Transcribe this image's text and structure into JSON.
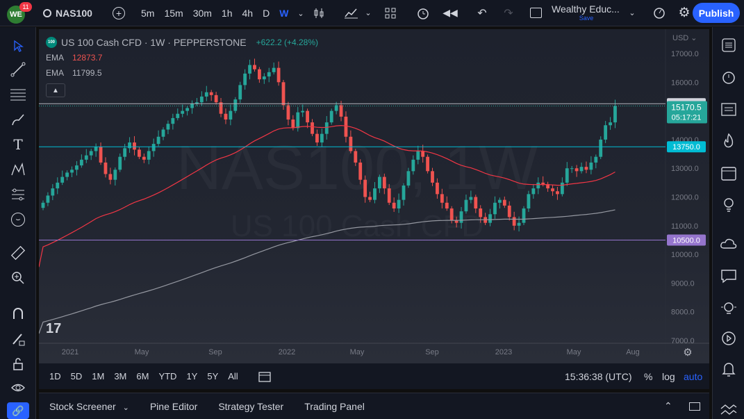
{
  "header": {
    "badge_count": "11",
    "logo_text": "WE",
    "symbol": "NAS100",
    "intervals": [
      "5m",
      "15m",
      "30m",
      "1h",
      "4h",
      "D",
      "W"
    ],
    "active_interval": "W",
    "layout_name": "Wealthy Educ...",
    "layout_status": "Save",
    "publish_label": "Publish"
  },
  "legend": {
    "symbol_badge": "100",
    "title": "US 100 Cash CFD · 1W · PEPPERSTONE",
    "change": "+622.2 (+4.28%)",
    "ema1_label": "EMA",
    "ema1_value": "12873.7",
    "ema2_label": "EMA",
    "ema2_value": "11799.5"
  },
  "watermark": {
    "symbol": "NAS100, 1W",
    "description": "US 100 Cash CFD"
  },
  "chart_data": {
    "type": "candlestick",
    "currency": "USD",
    "y_ticks": [
      7000,
      8000,
      9000,
      10000,
      11000,
      12000,
      13000,
      14000,
      16000,
      17000
    ],
    "y_tick_labels": [
      "7000.0",
      "8000.0",
      "9000.0",
      "10000.0",
      "11000.0",
      "12000.0",
      "13000.0",
      "14000.0",
      "16000.0",
      "17000.0"
    ],
    "x_labels": [
      "2021",
      "May",
      "Sep",
      "2022",
      "May",
      "Sep",
      "2023",
      "May",
      "Aug"
    ],
    "ylim": [
      7000,
      17800
    ],
    "horizontal_lines": [
      {
        "value": 15250,
        "label": "15250.0",
        "color": "#b2b5be"
      },
      {
        "value": 13750,
        "label": "13750.0",
        "color": "#00bcd4"
      },
      {
        "value": 10500,
        "label": "10500.0",
        "color": "#9575cd"
      }
    ],
    "last_price": {
      "value": 15170.5,
      "label": "15170.5",
      "countdown": "05:17:21",
      "color": "#26a69a"
    },
    "closes": [
      11800,
      12050,
      12300,
      12500,
      12700,
      12850,
      12950,
      13100,
      13300,
      13450,
      13600,
      13750,
      13200,
      12800,
      12600,
      12950,
      13400,
      13700,
      13900,
      13650,
      13400,
      13300,
      13600,
      13850,
      14100,
      14350,
      14550,
      14750,
      14900,
      15000,
      15100,
      15250,
      15300,
      15500,
      15650,
      15550,
      15300,
      14900,
      14700,
      15000,
      15400,
      15900,
      16300,
      16600,
      16450,
      16100,
      16200,
      16350,
      16500,
      16000,
      15200,
      14700,
      14400,
      14950,
      15000,
      14600,
      14200,
      13900,
      14200,
      14600,
      15000,
      15200,
      14800,
      14100,
      13600,
      13200,
      12600,
      12000,
      11900,
      12300,
      12700,
      12300,
      11800,
      11600,
      11900,
      12400,
      12900,
      13300,
      13600,
      13400,
      12900,
      12500,
      12100,
      11800,
      11600,
      11200,
      11100,
      11500,
      11900,
      12000,
      11600,
      11300,
      11100,
      11400,
      11800,
      11900,
      11700,
      11300,
      11000,
      11100,
      11600,
      12100,
      12300,
      12500,
      12450,
      12300,
      12200,
      12100,
      12500,
      13000,
      13000,
      12900,
      13050,
      12950,
      13200,
      13400,
      14000,
      14500,
      14600,
      15170.5
    ],
    "ema_50": {
      "name": "EMA",
      "value": 12873.7,
      "color": "#f23645"
    },
    "ema_200": {
      "name": "EMA",
      "value": 11799.5,
      "color": "#9598a1"
    }
  },
  "range_bar": {
    "ranges": [
      "1D",
      "5D",
      "1M",
      "3M",
      "6M",
      "YTD",
      "1Y",
      "5Y",
      "All"
    ],
    "time": "15:36:38 (UTC)",
    "percent": "%",
    "log": "log",
    "auto": "auto"
  },
  "bottom_panel": {
    "tabs": [
      "Stock Screener",
      "Pine Editor",
      "Strategy Tester",
      "Trading Panel"
    ]
  },
  "colors": {
    "up": "#26a69a",
    "down": "#ef5350",
    "accent": "#2962ff"
  }
}
